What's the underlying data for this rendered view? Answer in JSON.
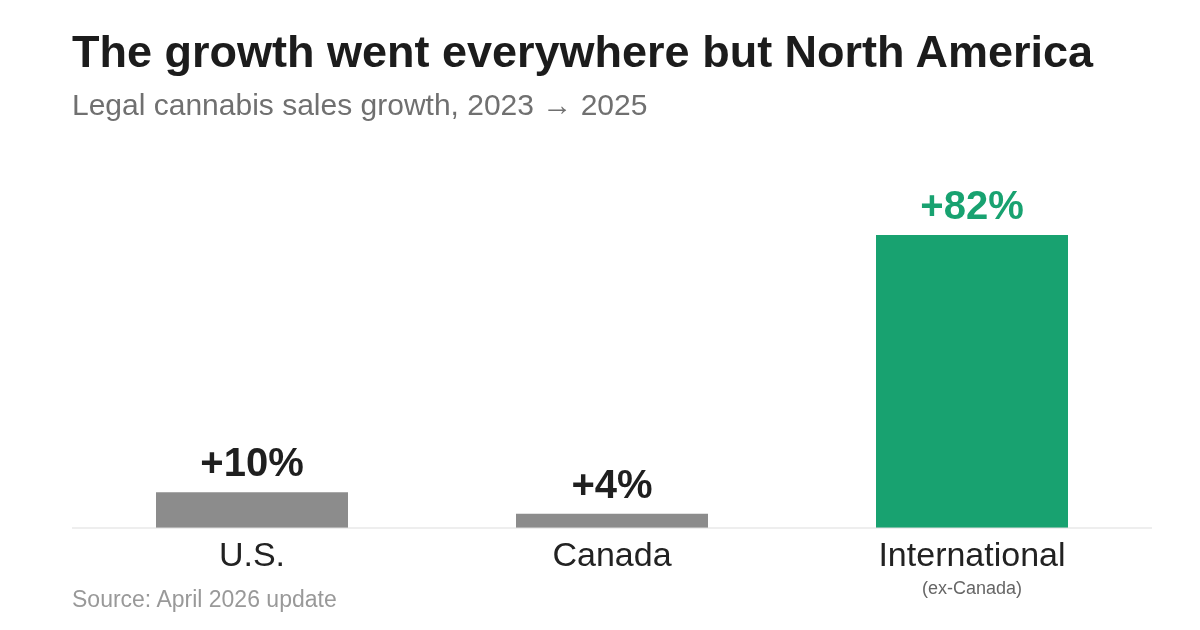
{
  "chart_data": {
    "type": "bar",
    "title": "The growth went everywhere but North America",
    "subtitle": "Legal cannabis sales growth, 2023 → 2025",
    "categories": [
      "U.S.",
      "Canada",
      "International"
    ],
    "values": [
      10,
      4,
      82
    ],
    "colors": [
      "#8c8c8c",
      "#8c8c8c",
      "#18a270"
    ],
    "value_labels": [
      "+10%",
      "+4%",
      "+82%"
    ],
    "annotations": [
      "(ex-Canada)",
      "Source: April 2026 update"
    ],
    "grid": false,
    "legend": false
  }
}
